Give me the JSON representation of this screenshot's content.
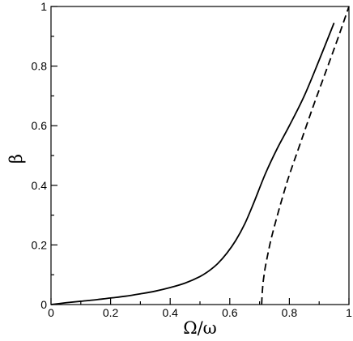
{
  "chart_data": {
    "type": "line",
    "title": "",
    "xlabel": "Ω/ω",
    "ylabel": "β",
    "xlim": [
      0,
      1
    ],
    "ylim": [
      0,
      1
    ],
    "grid": false,
    "legend": "none",
    "x_ticks": [
      0,
      0.2,
      0.4,
      0.6,
      0.8,
      1
    ],
    "x_tick_labels": [
      "0",
      "0.2",
      "0.4",
      "0.6",
      "0.8",
      "1"
    ],
    "y_ticks": [
      0,
      0.2,
      0.4,
      0.6,
      0.8,
      1
    ],
    "y_tick_labels": [
      "0",
      "0.2",
      "0.4",
      "0.6",
      "0.8",
      "1"
    ],
    "series": [
      {
        "style": "solid",
        "color": "#000000",
        "x": [
          0,
          0.05,
          0.1,
          0.15,
          0.2,
          0.25,
          0.3,
          0.35,
          0.4,
          0.45,
          0.5,
          0.53,
          0.56,
          0.59,
          0.62,
          0.65,
          0.68,
          0.72,
          0.76,
          0.8,
          0.85,
          0.9,
          0.95
        ],
        "y": [
          0,
          0.006,
          0.011,
          0.016,
          0.022,
          0.028,
          0.036,
          0.045,
          0.057,
          0.072,
          0.094,
          0.113,
          0.138,
          0.172,
          0.215,
          0.27,
          0.34,
          0.44,
          0.525,
          0.6,
          0.7,
          0.82,
          0.945
        ]
      },
      {
        "style": "dashed",
        "color": "#000000",
        "x": [
          0.707,
          0.709,
          0.712,
          0.716,
          0.72,
          0.73,
          0.74,
          0.76,
          0.78,
          0.8,
          0.84,
          0.88,
          0.92,
          0.96,
          1.0
        ],
        "y": [
          0,
          0.04,
          0.075,
          0.105,
          0.13,
          0.18,
          0.225,
          0.3,
          0.37,
          0.435,
          0.55,
          0.665,
          0.775,
          0.885,
          1.0
        ]
      }
    ]
  }
}
